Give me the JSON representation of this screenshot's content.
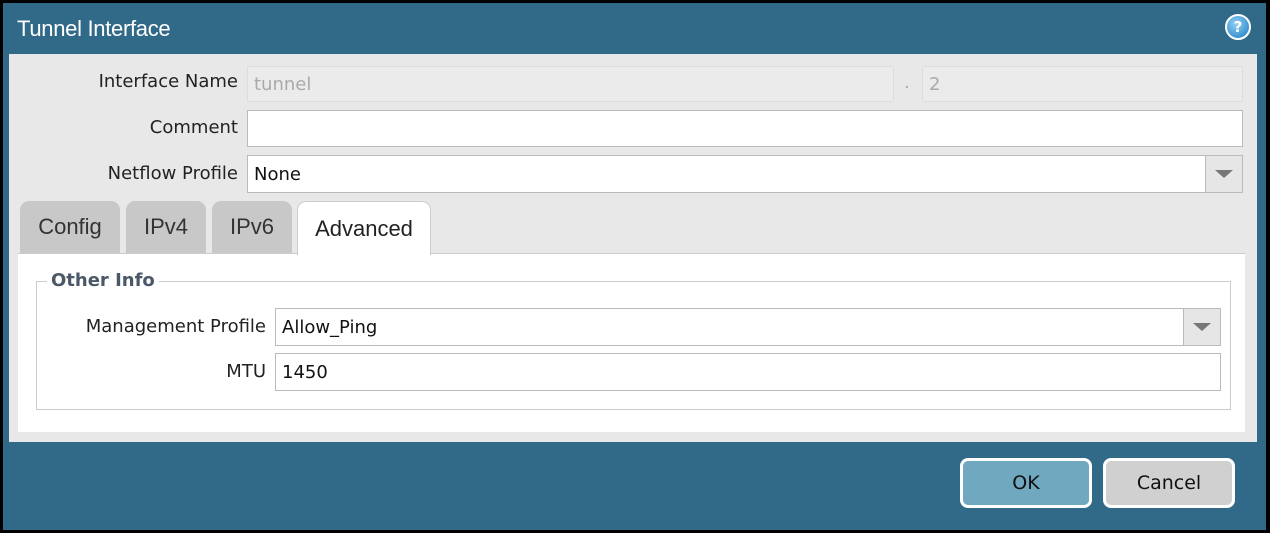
{
  "dialog": {
    "title": "Tunnel Interface",
    "help_icon": "help-icon"
  },
  "fields": {
    "interface_name": {
      "label": "Interface Name",
      "value": "tunnel",
      "separator": ".",
      "suffix": "2"
    },
    "comment": {
      "label": "Comment",
      "value": ""
    },
    "netflow_profile": {
      "label": "Netflow Profile",
      "value": "None"
    }
  },
  "tabs": [
    {
      "label": "Config"
    },
    {
      "label": "IPv4"
    },
    {
      "label": "IPv6"
    },
    {
      "label": "Advanced",
      "active": true
    }
  ],
  "advanced": {
    "group_title": "Other Info",
    "management_profile": {
      "label": "Management Profile",
      "value": "Allow_Ping"
    },
    "mtu": {
      "label": "MTU",
      "value": "1450"
    }
  },
  "buttons": {
    "ok": "OK",
    "cancel": "Cancel"
  },
  "colors": {
    "titlebar": "#316a88",
    "ok_button": "#6fa8bf",
    "cancel_button": "#d0d0d0"
  }
}
